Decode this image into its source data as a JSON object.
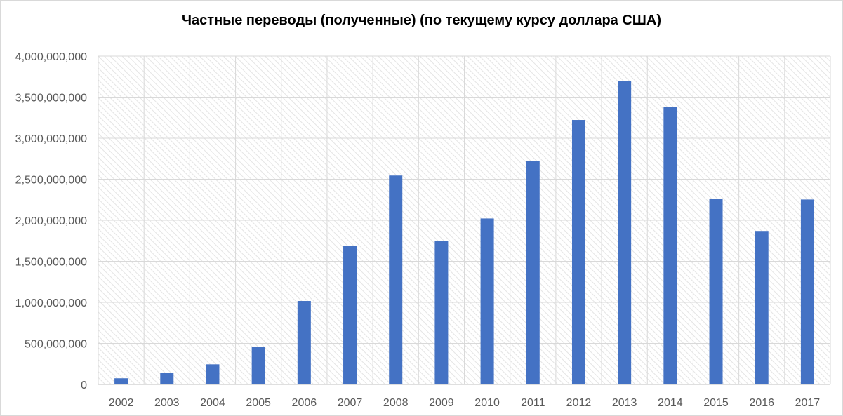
{
  "chart_data": {
    "type": "bar",
    "title": "Частные переводы (полученные) (по текущему курсу доллара США)",
    "xlabel": "",
    "ylabel": "",
    "categories": [
      "2002",
      "2003",
      "2004",
      "2005",
      "2006",
      "2007",
      "2008",
      "2009",
      "2010",
      "2011",
      "2012",
      "2013",
      "2014",
      "2015",
      "2016",
      "2017"
    ],
    "series": [
      {
        "values": [
          75000000,
          144000000,
          245000000,
          460000000,
          1017000000,
          1691000000,
          2545000000,
          1750000000,
          2022000000,
          2722000000,
          3222000000,
          3697000000,
          3384000000,
          2261000000,
          1870000000,
          2253000000
        ],
        "color": "#4472c4"
      }
    ],
    "ylim": [
      0,
      4000000000
    ],
    "yticks": [
      "0",
      "500,000,000",
      "1,000,000,000",
      "1,500,000,000",
      "2,000,000,000",
      "2,500,000,000",
      "3,000,000,000",
      "3,500,000,000",
      "4,000,000,000"
    ],
    "grid": true,
    "legend": "none"
  }
}
